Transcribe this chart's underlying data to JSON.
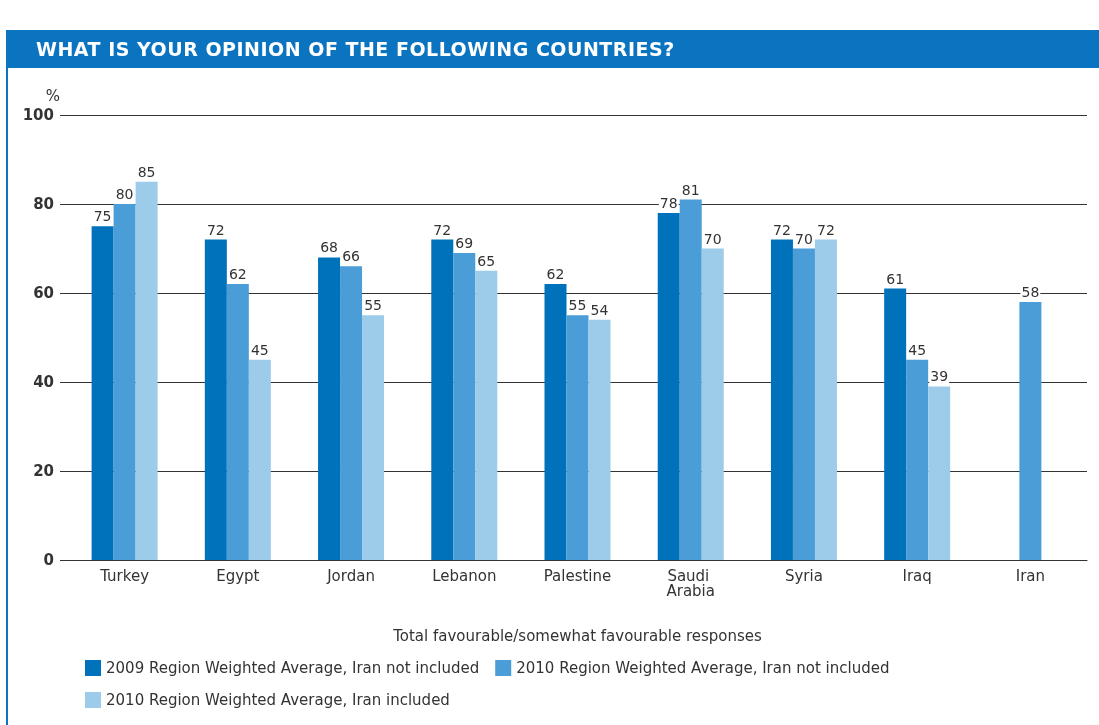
{
  "chart_data": {
    "type": "bar",
    "title": "WHAT IS YOUR OPINION OF THE FOLLOWING COUNTRIES?",
    "ylabel": "%",
    "xlabel": "Total favourable/somewhat favourable responses",
    "categories": [
      "Turkey",
      "Egypt",
      "Jordan",
      "Lebanon",
      "Palestine",
      "Saudi Arabia",
      "Syria",
      "Iraq",
      "Iran"
    ],
    "series": [
      {
        "name": "2009 Region Weighted Average, Iran not included",
        "color": "#0072bc",
        "values": [
          75,
          72,
          68,
          72,
          62,
          78,
          72,
          61,
          null
        ]
      },
      {
        "name": "2010 Region Weighted Average, Iran not included",
        "color": "#4a9dd6",
        "values": [
          80,
          62,
          66,
          69,
          55,
          81,
          70,
          45,
          58
        ]
      },
      {
        "name": "2010 Region Weighted Average, Iran included",
        "color": "#9dcbea",
        "values": [
          85,
          45,
          55,
          65,
          54,
          70,
          72,
          39,
          null
        ]
      }
    ],
    "ylim": [
      0,
      100
    ],
    "yticks": [
      0,
      20,
      40,
      60,
      80,
      100
    ],
    "grid": "y",
    "legend": "bottom",
    "data_labels": true
  }
}
